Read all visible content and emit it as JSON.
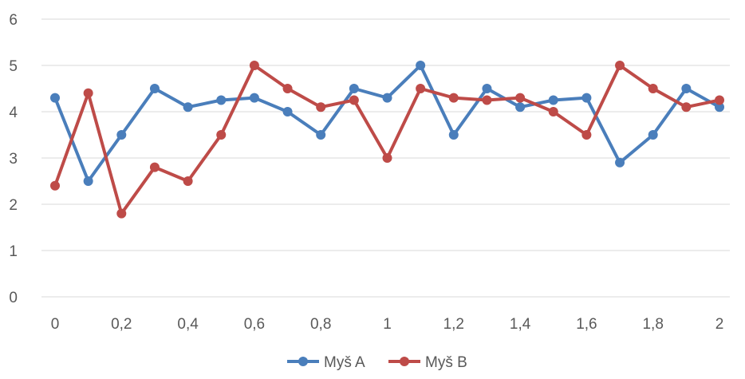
{
  "chart_data": {
    "type": "line",
    "title": "",
    "xlabel": "",
    "ylabel": "",
    "x": [
      0,
      0.1,
      0.2,
      0.3,
      0.4,
      0.5,
      0.6,
      0.7,
      0.8,
      0.9,
      1.0,
      1.1,
      1.2,
      1.3,
      1.4,
      1.5,
      1.6,
      1.7,
      1.8,
      1.9,
      2.0
    ],
    "x_tick_values": [
      0,
      0.2,
      0.4,
      0.6,
      0.8,
      1,
      1.2,
      1.4,
      1.6,
      1.8,
      2
    ],
    "x_tick_labels": [
      "0",
      "0,2",
      "0,4",
      "0,6",
      "0,8",
      "1",
      "1,2",
      "1,4",
      "1,6",
      "1,8",
      "2"
    ],
    "y_tick_values": [
      0,
      1,
      2,
      3,
      4,
      5,
      6
    ],
    "y_tick_labels": [
      "0",
      "1",
      "2",
      "3",
      "4",
      "5",
      "6"
    ],
    "xlim": [
      0,
      2
    ],
    "ylim": [
      0,
      6
    ],
    "grid": true,
    "legend_position": "bottom",
    "series": [
      {
        "name": "Myš A",
        "color": "#4a7ebb",
        "values": [
          4.3,
          2.5,
          3.5,
          4.5,
          4.1,
          4.25,
          4.3,
          4.0,
          3.5,
          4.5,
          4.3,
          5.0,
          3.5,
          4.5,
          4.1,
          4.25,
          4.3,
          2.9,
          3.5,
          4.5,
          4.1
        ]
      },
      {
        "name": "Myš B",
        "color": "#be4b48",
        "values": [
          2.4,
          4.4,
          1.8,
          2.8,
          2.5,
          3.5,
          5.0,
          4.5,
          4.1,
          4.25,
          3.0,
          4.5,
          4.3,
          4.25,
          4.3,
          4.0,
          3.5,
          5.0,
          4.5,
          4.1,
          4.25
        ]
      }
    ]
  }
}
